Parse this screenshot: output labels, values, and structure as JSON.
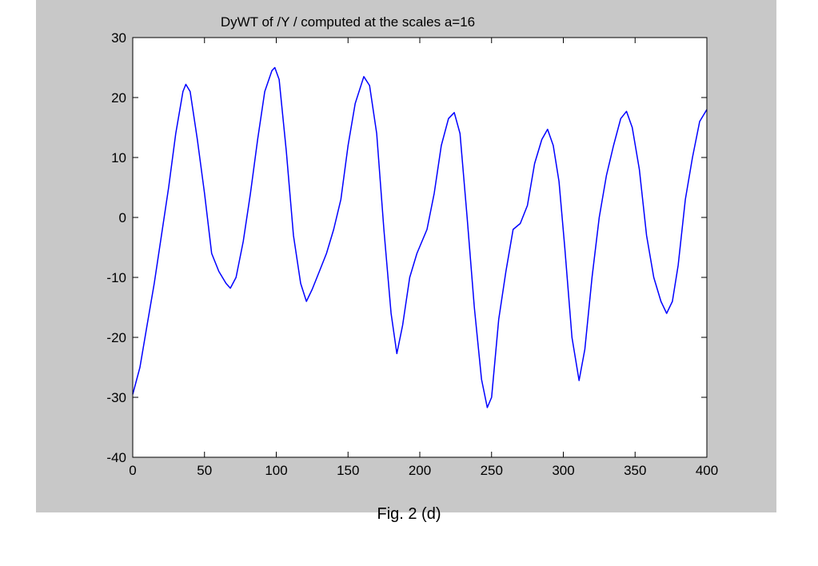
{
  "chart_data": {
    "type": "line",
    "title": "DyWT of /Υ / computed at the scales a=16",
    "xlabel": "",
    "ylabel": "",
    "xlim": [
      0,
      400
    ],
    "ylim": [
      -40,
      30
    ],
    "xticks": [
      0,
      50,
      100,
      150,
      200,
      250,
      300,
      350,
      400
    ],
    "yticks": [
      -40,
      -30,
      -20,
      -10,
      0,
      10,
      20,
      30
    ],
    "grid": false,
    "series": [
      {
        "color": "#0000ff",
        "points": [
          [
            0,
            -29.5
          ],
          [
            5,
            -25
          ],
          [
            10,
            -18
          ],
          [
            15,
            -11
          ],
          [
            20,
            -3
          ],
          [
            25,
            5
          ],
          [
            30,
            14
          ],
          [
            35,
            21
          ],
          [
            37,
            22.2
          ],
          [
            40,
            21
          ],
          [
            45,
            13
          ],
          [
            50,
            4
          ],
          [
            55,
            -6
          ],
          [
            60,
            -9
          ],
          [
            65,
            -11
          ],
          [
            68,
            -11.8
          ],
          [
            72,
            -10
          ],
          [
            77,
            -4
          ],
          [
            82,
            4
          ],
          [
            87,
            13
          ],
          [
            92,
            21
          ],
          [
            97,
            24.5
          ],
          [
            99,
            25
          ],
          [
            102,
            23
          ],
          [
            107,
            11
          ],
          [
            112,
            -3
          ],
          [
            117,
            -11
          ],
          [
            121,
            -14
          ],
          [
            125,
            -12
          ],
          [
            130,
            -9
          ],
          [
            135,
            -6
          ],
          [
            140,
            -2
          ],
          [
            145,
            3
          ],
          [
            150,
            12
          ],
          [
            155,
            19
          ],
          [
            161,
            23.5
          ],
          [
            165,
            22
          ],
          [
            170,
            14
          ],
          [
            175,
            -2
          ],
          [
            180,
            -16
          ],
          [
            184,
            -22.7
          ],
          [
            188,
            -18
          ],
          [
            193,
            -10
          ],
          [
            198,
            -6
          ],
          [
            205,
            -2
          ],
          [
            210,
            4
          ],
          [
            215,
            12
          ],
          [
            220,
            16.5
          ],
          [
            224,
            17.5
          ],
          [
            228,
            14
          ],
          [
            233,
            0
          ],
          [
            238,
            -15
          ],
          [
            243,
            -27
          ],
          [
            247,
            -31.7
          ],
          [
            250,
            -30
          ],
          [
            255,
            -17
          ],
          [
            260,
            -9
          ],
          [
            265,
            -2
          ],
          [
            270,
            -1
          ],
          [
            275,
            2
          ],
          [
            280,
            9
          ],
          [
            285,
            13
          ],
          [
            289,
            14.7
          ],
          [
            293,
            12
          ],
          [
            297,
            6
          ],
          [
            301,
            -5
          ],
          [
            306,
            -20
          ],
          [
            311,
            -27.2
          ],
          [
            315,
            -22
          ],
          [
            320,
            -10
          ],
          [
            325,
            0
          ],
          [
            330,
            7
          ],
          [
            335,
            12
          ],
          [
            340,
            16.5
          ],
          [
            344,
            17.7
          ],
          [
            348,
            15
          ],
          [
            353,
            8
          ],
          [
            358,
            -3
          ],
          [
            363,
            -10
          ],
          [
            368,
            -14
          ],
          [
            372,
            -16
          ],
          [
            376,
            -14
          ],
          [
            380,
            -8
          ],
          [
            385,
            3
          ],
          [
            390,
            10
          ],
          [
            395,
            16
          ],
          [
            400,
            18
          ]
        ]
      }
    ]
  },
  "caption": "Fig. 2 (d)"
}
